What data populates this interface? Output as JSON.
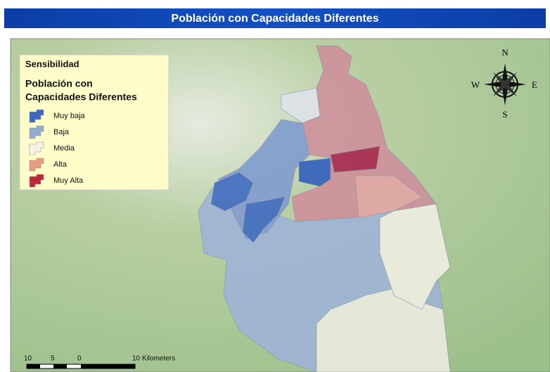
{
  "header": {
    "title": "Población con Capacidades Diferentes"
  },
  "legend": {
    "title": "Sensibilidad",
    "subtitle_line1": "Población con",
    "subtitle_line2": "Capacidades Diferentes",
    "items": [
      {
        "label": "Muy baja",
        "color": "#3d68c2"
      },
      {
        "label": "Baja",
        "color": "#93abd0"
      },
      {
        "label": "Media",
        "color": "#f6f3e6"
      },
      {
        "label": "Alta",
        "color": "#e89a7e"
      },
      {
        "label": "Muy Alta",
        "color": "#c1283b"
      }
    ]
  },
  "compass": {
    "north": "N",
    "south": "S",
    "east": "E",
    "west": "W"
  },
  "scale_bar": {
    "labels": [
      "10",
      "5",
      "0",
      "10 Kilometers"
    ]
  }
}
